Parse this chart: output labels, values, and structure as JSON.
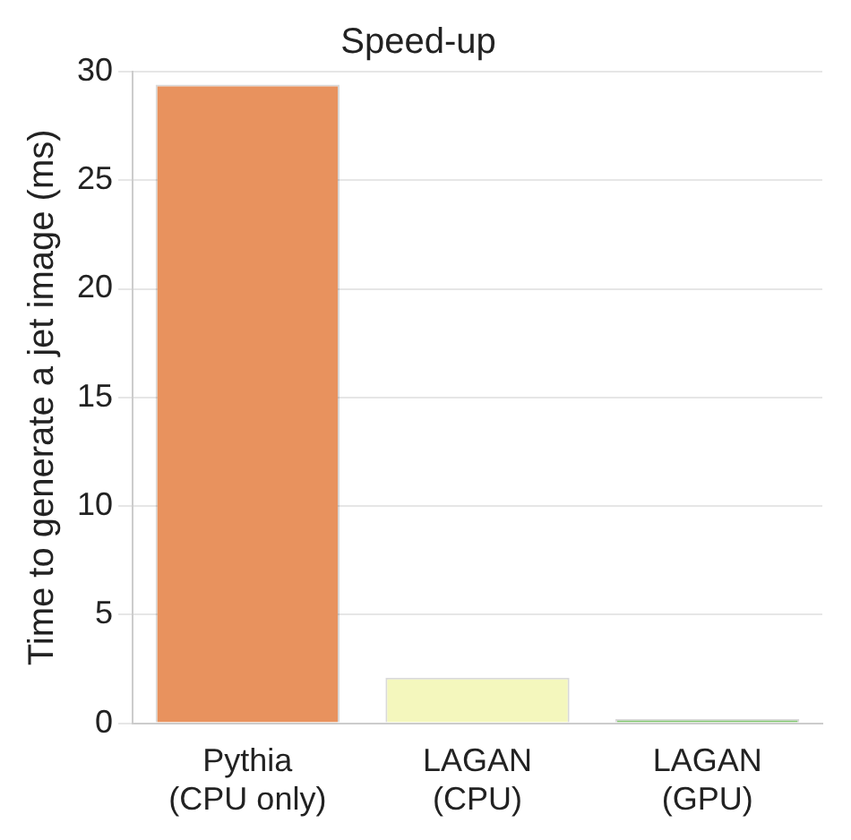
{
  "chart_data": {
    "type": "bar",
    "title": "Speed-up",
    "ylabel": "Time to generate a jet image (ms)",
    "categories": [
      "Pythia\n(CPU only)",
      "LAGAN\n(CPU)",
      "LAGAN\n(GPU)"
    ],
    "values": [
      29.4,
      2.1,
      0.2
    ],
    "colors": [
      "#e8925e",
      "#f4f7bd",
      "#7dc36b"
    ],
    "ylim": [
      0,
      30
    ],
    "yticks": [
      0,
      5,
      10,
      15,
      20,
      25,
      30
    ],
    "grid": "y"
  }
}
